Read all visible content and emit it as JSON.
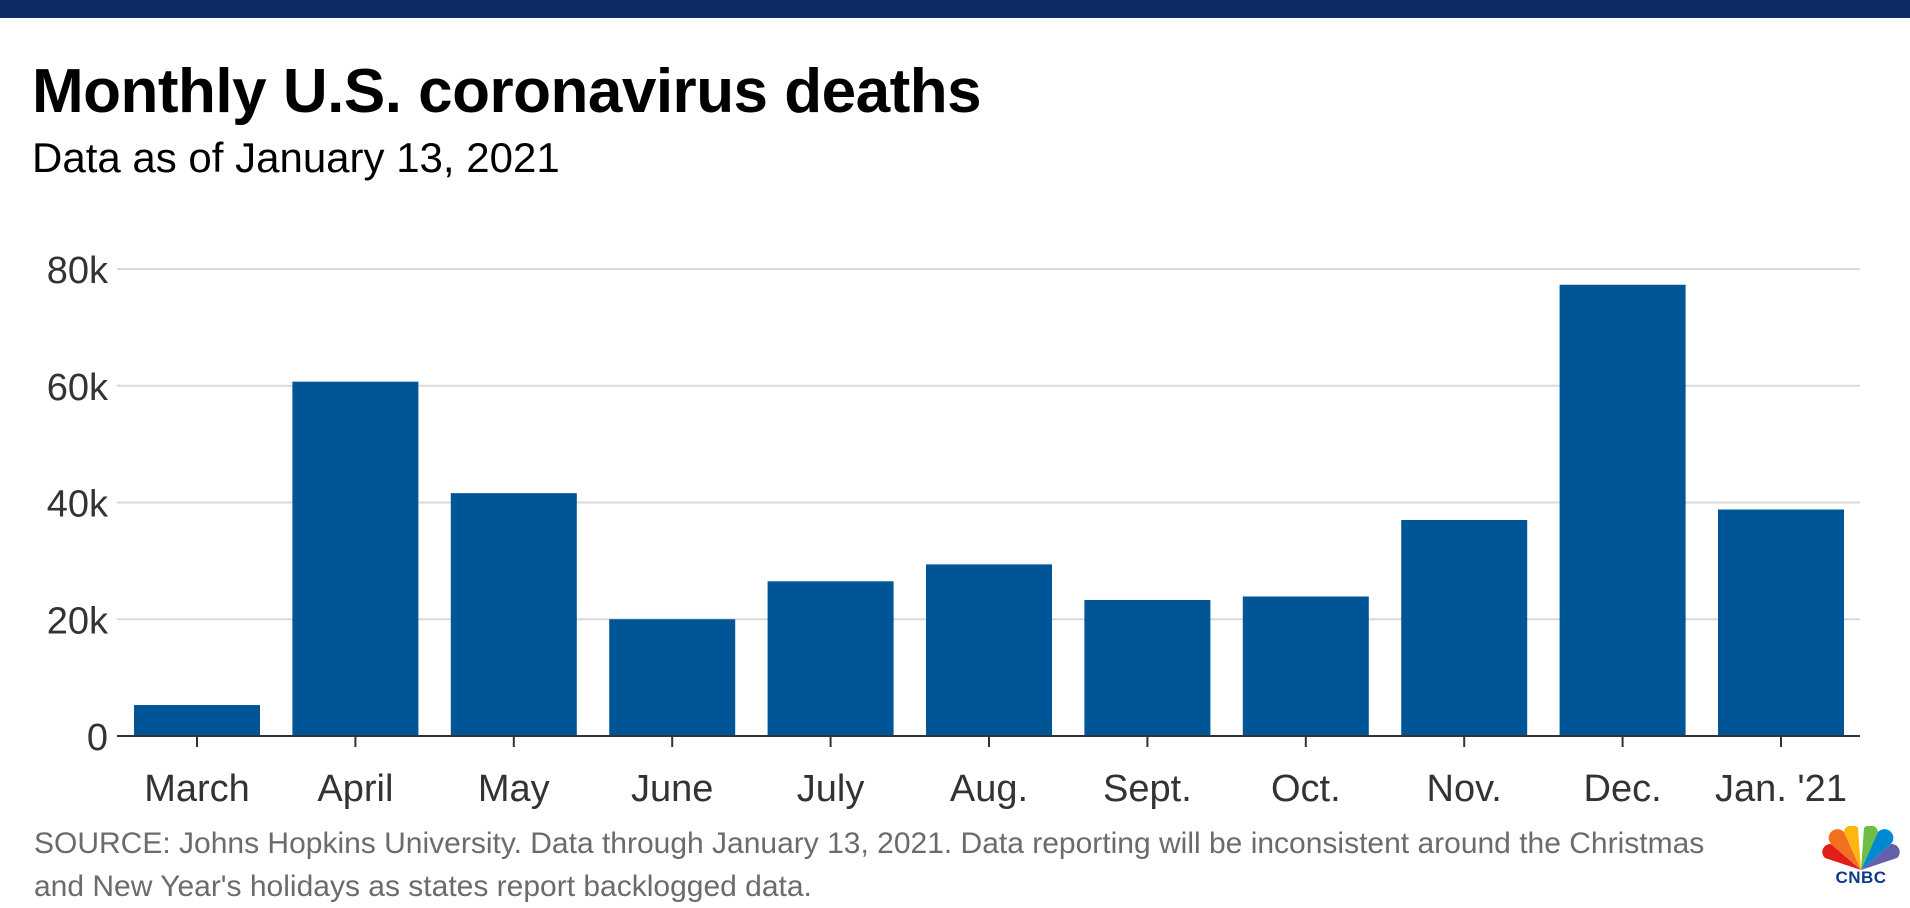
{
  "header": {
    "title": "Monthly U.S. coronavirus deaths",
    "subtitle": "Data as of January 13, 2021"
  },
  "footer": {
    "source": "SOURCE: Johns Hopkins University. Data through January 13, 2021. Data reporting will be inconsistent around the Christmas and New Year's holidays as states report backlogged data.",
    "logo_text": "CNBC"
  },
  "colors": {
    "bar": "#005596",
    "top_bar": "#0b2a66",
    "gridline": "#d9d9d9",
    "axis": "#333333",
    "label": "#333333"
  },
  "chart_data": {
    "type": "bar",
    "title": "Monthly U.S. coronavirus deaths",
    "subtitle": "Data as of January 13, 2021",
    "xlabel": "",
    "ylabel": "",
    "categories": [
      "March",
      "April",
      "May",
      "June",
      "July",
      "Aug.",
      "Sept.",
      "Oct.",
      "Nov.",
      "Dec.",
      "Jan. '21"
    ],
    "values": [
      5300,
      60700,
      41600,
      20000,
      26500,
      29400,
      23300,
      23900,
      37000,
      77300,
      38800
    ],
    "ylim": [
      0,
      80000
    ],
    "yticks": [
      0,
      20000,
      40000,
      60000,
      80000
    ],
    "ytick_labels": [
      "0",
      "20k",
      "40k",
      "60k",
      "80k"
    ],
    "grid": true,
    "legend": "none"
  }
}
